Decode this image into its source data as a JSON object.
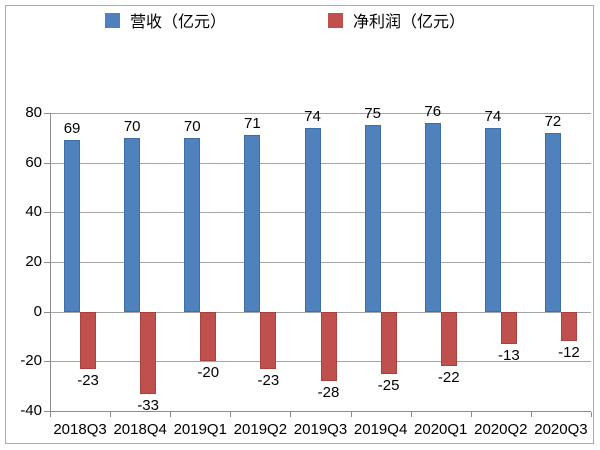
{
  "chart_data": {
    "type": "bar",
    "title": "",
    "xlabel": "",
    "ylabel": "",
    "categories": [
      "2018Q3",
      "2018Q4",
      "2019Q1",
      "2019Q2",
      "2019Q3",
      "2019Q4",
      "2020Q1",
      "2020Q2",
      "2020Q3"
    ],
    "series": [
      {
        "name": "营收（亿元）",
        "color": "#4f81bd",
        "edge_color": "#3d6ea5",
        "values": [
          69,
          70,
          70,
          71,
          74,
          75,
          76,
          74,
          72
        ]
      },
      {
        "name": "净利润（亿元）",
        "color": "#c0504d",
        "edge_color": "#a8423f",
        "values": [
          -23,
          -33,
          -20,
          -23,
          -28,
          -25,
          -22,
          -13,
          -12
        ]
      }
    ],
    "ylim": [
      -40,
      80
    ],
    "yticks": [
      80,
      60,
      40,
      20,
      0,
      -20,
      -40
    ],
    "grid": true,
    "legend_position": "top",
    "data_labels": true
  },
  "style_colors": {
    "gridline": "#a6a6a6",
    "axis": "#8c8c8c",
    "frame": "#ababab",
    "text": "#000000",
    "background": "#ffffff"
  }
}
